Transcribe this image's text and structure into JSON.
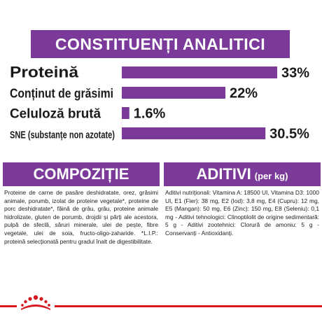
{
  "title": "CONSTITUENȚI ANALITICI",
  "chart_data": {
    "type": "bar",
    "orientation": "horizontal",
    "title": "CONSTITUENȚI ANALITICI",
    "categories": [
      "Proteină",
      "Conținut de grăsimi",
      "Celuloză brută",
      "SNE (substanțe non azotate)"
    ],
    "values": [
      33,
      22,
      1.6,
      30.5
    ],
    "value_labels": [
      "33%",
      "22%",
      "1.6%",
      "30.5%"
    ],
    "unit": "%",
    "xlim": [
      0,
      33
    ],
    "grid": false,
    "legend": "none"
  },
  "composition": {
    "heading": "COMPOZIȚIE",
    "text": "Proteine de carne de pasăre deshidratate, orez, grăsimi animale, porumb, izolat de proteine vegetale*, proteine de porc deshidratate*, făină de grâu, grâu, proteine animale hidrolizate, gluten de porumb, drojdii și părți ale acestora, pulpă de sfeclă, săruri minerale, ulei de pește, fibre vegetale, ulei de soia, fructo-oligo-zaharide. *L.I.P.: proteină selecționată pentru gradul înalt de digestibilitate."
  },
  "additives": {
    "heading": "ADITIVI",
    "heading_suffix": "(per kg)",
    "text": "Aditivi nutriționali: Vitamina A: 18500 UI, Vitamina D3: 1000 UI, E1 (Fier): 38 mg, E2 (Iod): 3,8 mg, E4 (Cupru): 12 mg, E5 (Mangan): 50 mg, E6 (Zinc): 150 mg, E8 (Seleniu): 0,1 mg - Aditivi tehnologici: Clinoptilolit de origine sedimentară: 5 g - Aditivi zootehnici: Clorură de amoniu: 5 g - Conservanți - Antioxidanți."
  },
  "colors": {
    "purple": "#7b3a9a",
    "red": "#d71920"
  },
  "logo_icon": "royal-canin-crown-logo"
}
